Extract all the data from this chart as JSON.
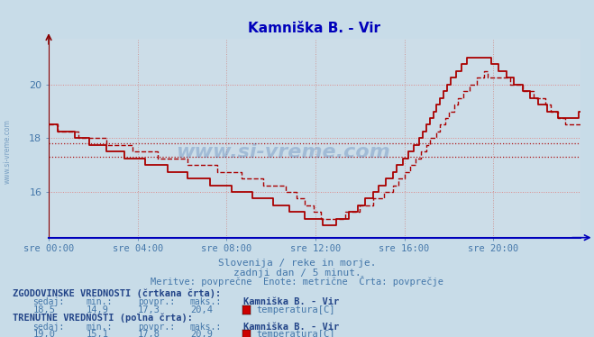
{
  "title": "Kamniška B. - Vir",
  "title_color": "#0000bb",
  "bg_color": "#c8dce8",
  "plot_bg_color": "#ccdde8",
  "line_color": "#aa0000",
  "grid_color_h": "#dd8888",
  "grid_color_v": "#cc9999",
  "axis_color_left": "#880000",
  "axis_color_bottom": "#0000bb",
  "text_color": "#4477aa",
  "dark_text_color": "#224488",
  "xlabel_ticks": [
    "sre 00:00",
    "sre 04:00",
    "sre 08:00",
    "sre 12:00",
    "sre 16:00",
    "sre 20:00"
  ],
  "xlabel_tick_positions": [
    0,
    48,
    96,
    144,
    192,
    240
  ],
  "ylim": [
    14.3,
    21.7
  ],
  "yticks": [
    16,
    18,
    20
  ],
  "n_points": 288,
  "hist_avg": 17.3,
  "curr_avg": 17.8,
  "subtitle1": "Slovenija / reke in morje.",
  "subtitle2": "zadnji dan / 5 minut.",
  "subtitle3": "Meritve: povprečne  Enote: metrične  Črta: povprečje",
  "hist_label": "ZGODOVINSKE VREDNOSTI (črtkana črta):",
  "curr_label": "TRENUTNE VREDNOSTI (polna črta):",
  "col_headers": [
    "sedaj:",
    "min.:",
    "povpr.:",
    "maks.:"
  ],
  "hist_vals": [
    "18,5",
    "14,9",
    "17,3",
    "20,4"
  ],
  "curr_vals": [
    "19,0",
    "15,1",
    "17,8",
    "20,9"
  ],
  "station_name": "Kamniška B. - Vir",
  "measure": "temperatura[C]",
  "watermark_center": "www.si-vreme.com",
  "watermark_left": "www.si-vreme.com",
  "box_color": "#cc0000"
}
